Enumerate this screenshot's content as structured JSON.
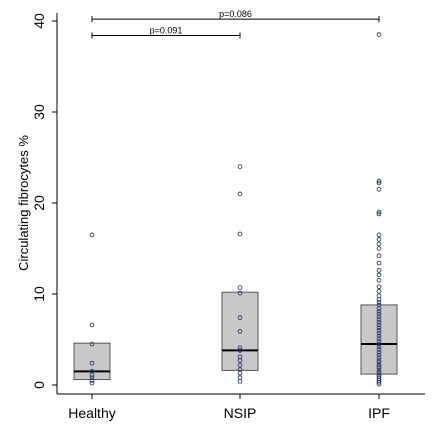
{
  "chart_data": {
    "type": "box",
    "ylabel": "Circulating fibrocytes %",
    "ylim": [
      0,
      40
    ],
    "yticks": [
      0,
      10,
      20,
      30,
      40
    ],
    "categories": [
      "Healthy",
      "NSIP",
      "IPF"
    ],
    "boxes": [
      {
        "q1": 0.6,
        "median": 1.5,
        "q3": 4.6
      },
      {
        "q1": 1.6,
        "median": 3.8,
        "q3": 10.2
      },
      {
        "q1": 1.2,
        "median": 4.5,
        "q3": 8.8
      }
    ],
    "points": [
      [
        0.2,
        0.5,
        0.8,
        1.1,
        1.5,
        2.4,
        4.5,
        6.6,
        16.5
      ],
      [
        0.4,
        0.8,
        1.3,
        1.7,
        2.2,
        2.7,
        3.1,
        3.8,
        4.1,
        5.9,
        7.4,
        10.1,
        10.7,
        16.6,
        21.0,
        24.0
      ],
      [
        0.1,
        0.3,
        0.5,
        0.7,
        0.9,
        1.1,
        1.3,
        1.5,
        1.8,
        2.0,
        2.2,
        2.5,
        2.7,
        3.0,
        3.3,
        3.6,
        3.9,
        4.2,
        4.5,
        4.8,
        5.1,
        5.4,
        5.7,
        6.0,
        6.3,
        6.6,
        6.9,
        7.2,
        7.5,
        7.8,
        8.1,
        8.4,
        8.8,
        9.1,
        9.4,
        9.8,
        10.3,
        10.8,
        11.5,
        12.1,
        12.6,
        13.4,
        14.2,
        15.0,
        15.5,
        16.0,
        16.5,
        18.8,
        19.0,
        21.5,
        22.2,
        22.4,
        38.5
      ]
    ],
    "brackets": [
      {
        "from": 0,
        "to": 2,
        "label": "p=0.086",
        "y": 40.2
      },
      {
        "from": 0,
        "to": 1,
        "label": "p=0.091",
        "y": 38.4
      }
    ],
    "grid": false
  }
}
